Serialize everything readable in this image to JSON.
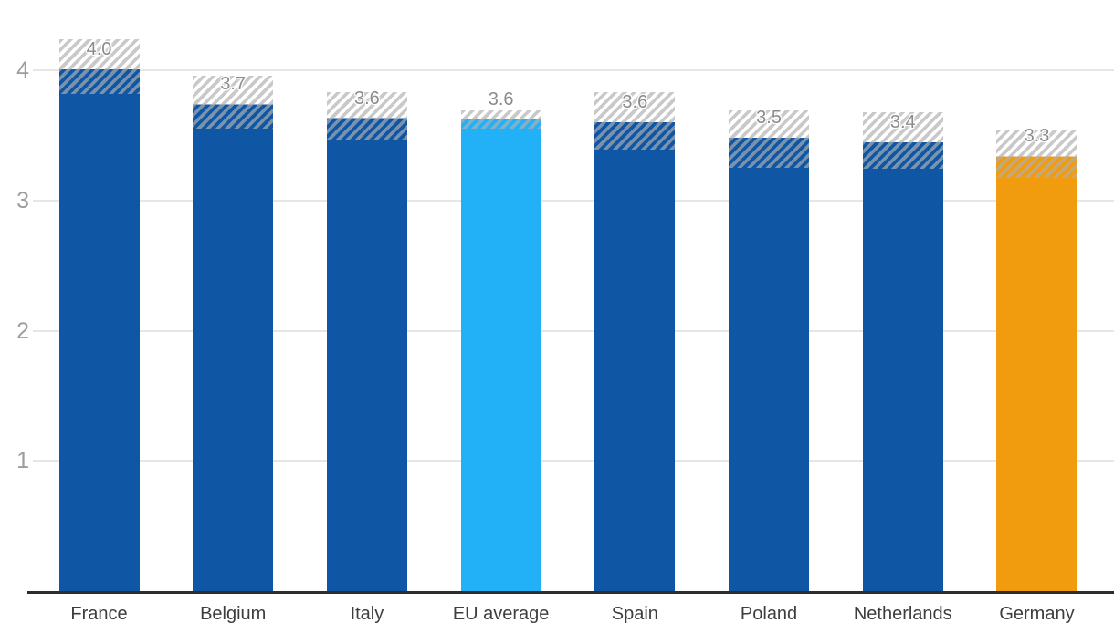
{
  "chart_data": {
    "type": "bar",
    "title": "",
    "xlabel": "",
    "ylabel": "",
    "categories": [
      "France",
      "Belgium",
      "Italy",
      "EU average",
      "Spain",
      "Poland",
      "Netherlands",
      "Germany"
    ],
    "values": [
      4.0,
      3.7,
      3.6,
      3.6,
      3.6,
      3.5,
      3.4,
      3.3
    ],
    "value_labels": [
      "4.0",
      "3.7",
      "3.6",
      "3.6",
      "3.6",
      "3.5",
      "3.4",
      "3.3"
    ],
    "series": [
      {
        "name": "central value",
        "values": [
          4.0,
          3.7,
          3.6,
          3.6,
          3.6,
          3.5,
          3.4,
          3.3
        ]
      },
      {
        "name": "uncertainty low",
        "values": [
          3.82,
          3.55,
          3.46,
          3.55,
          3.39,
          3.25,
          3.24,
          3.17
        ]
      },
      {
        "name": "uncertainty high",
        "values": [
          4.24,
          3.96,
          3.83,
          3.69,
          3.83,
          3.69,
          3.68,
          3.54
        ]
      }
    ],
    "plotted_tops": [
      4.01,
      3.74,
      3.63,
      3.62,
      3.6,
      3.48,
      3.45,
      3.34
    ],
    "uncertainty_low": [
      3.82,
      3.55,
      3.46,
      3.55,
      3.39,
      3.25,
      3.24,
      3.17
    ],
    "uncertainty_high": [
      4.24,
      3.96,
      3.83,
      3.69,
      3.83,
      3.69,
      3.68,
      3.54
    ],
    "bar_colors": [
      "#0f56a4",
      "#0f56a4",
      "#0f56a4",
      "#22b1f7",
      "#0f56a4",
      "#0f56a4",
      "#0f56a4",
      "#f09c0e"
    ],
    "y_ticks": [
      1,
      2,
      3,
      4
    ],
    "ylim": [
      0,
      4.45
    ],
    "grid": "horizontal gridlines on",
    "legend": "none",
    "annotations": "hatched band around each bar top shows uncertainty range",
    "colors": {
      "bar_default": "#0f56a4",
      "bar_eu_average": "#22b1f7",
      "bar_germany": "#f09c0e",
      "hatch_stripe": "rgba(175,175,175,0.68)",
      "gridline": "#e6e6e6",
      "axis_line": "#2d2d2d",
      "value_label": "#8b8b8b",
      "category_label": "#3d3d3d",
      "tick_label": "#9d9d9d"
    }
  }
}
